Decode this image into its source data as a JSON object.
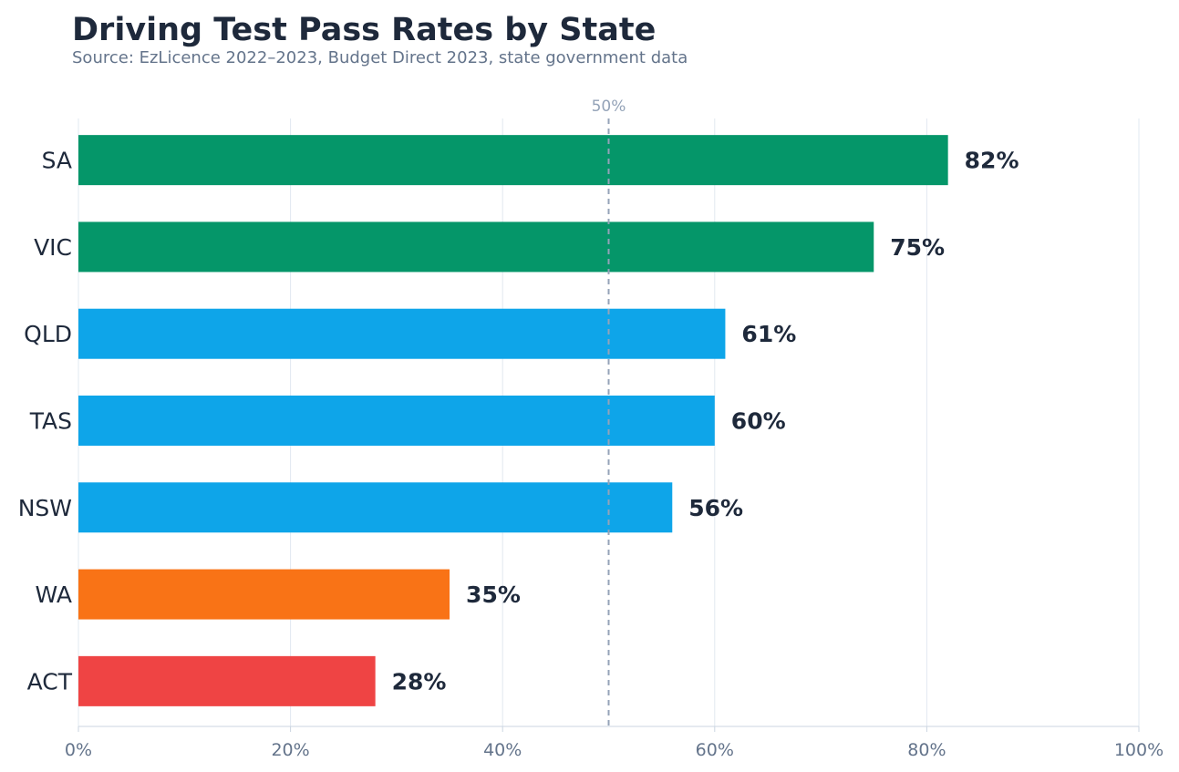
{
  "chart_data": {
    "type": "bar",
    "orientation": "horizontal",
    "title": "Driving Test Pass Rates by State",
    "subtitle": "Source: EzLicence 2022–2023, Budget Direct 2023, state government data",
    "categories": [
      "SA",
      "VIC",
      "QLD",
      "TAS",
      "NSW",
      "WA",
      "ACT"
    ],
    "values": [
      82,
      75,
      61,
      60,
      56,
      35,
      28
    ],
    "value_labels": [
      "82%",
      "75%",
      "61%",
      "60%",
      "56%",
      "35%",
      "28%"
    ],
    "colors": [
      "#059669",
      "#059669",
      "#0ea5e9",
      "#0ea5e9",
      "#0ea5e9",
      "#f97316",
      "#ef4444"
    ],
    "xlim": [
      0,
      100
    ],
    "xticks": [
      0,
      20,
      40,
      60,
      80,
      100
    ],
    "xtick_labels": [
      "0%",
      "20%",
      "40%",
      "60%",
      "80%",
      "100%"
    ],
    "xlabel": "",
    "ylabel": "",
    "grid": "vertical",
    "reference_line": {
      "value": 50,
      "label": "50%",
      "style": "dashed",
      "color": "#94a3b8"
    }
  }
}
